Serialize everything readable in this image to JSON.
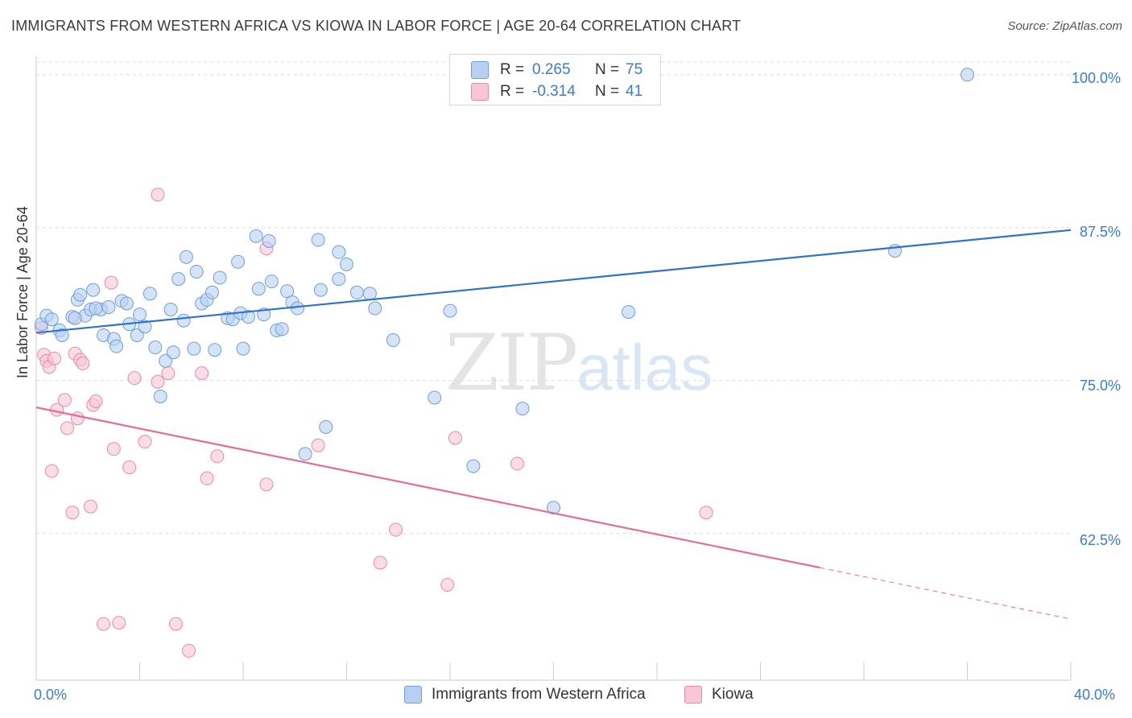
{
  "title": "IMMIGRANTS FROM WESTERN AFRICA VS KIOWA IN LABOR FORCE | AGE 20-64 CORRELATION CHART",
  "source": "Source: ZipAtlas.com",
  "watermark": {
    "main": "ZIP",
    "sub": "atlas"
  },
  "legend": {
    "rows": [
      {
        "r_label": "R =",
        "r_value": "0.265",
        "n_label": "N =",
        "n_value": "75"
      },
      {
        "r_label": "R =",
        "r_value": "-0.314",
        "n_label": "N =",
        "n_value": "41"
      }
    ]
  },
  "colors": {
    "series1_fill": "#b7d0f2",
    "series1_stroke": "#6f9fd8",
    "series1_line": "#2f74c8",
    "series2_fill": "#f8c6d6",
    "series2_stroke": "#e98aa9",
    "series2_line": "#e56b98",
    "tick_text": "#3a7bd5",
    "grid": "#dcdcdc"
  },
  "chart_data": {
    "type": "scatter",
    "title": "IMMIGRANTS FROM WESTERN AFRICA VS KIOWA IN LABOR FORCE | AGE 20-64 CORRELATION CHART",
    "xlabel": "",
    "ylabel": "In Labor Force | Age 20-64",
    "xlim": [
      0,
      40
    ],
    "ylim": [
      50.5,
      101.5
    ],
    "x_tick_labels": [
      "0.0%",
      "40.0%"
    ],
    "y_ticks": [
      62.5,
      75.0,
      87.5,
      100.0
    ],
    "y_tick_labels": [
      "62.5%",
      "75.0%",
      "87.5%",
      "100.0%"
    ],
    "grid": true,
    "legend_position": "top-center",
    "series": [
      {
        "name": "Immigrants from Western Africa",
        "trend": {
          "x": [
            0,
            40
          ],
          "y": [
            78.9,
            87.3
          ]
        },
        "points": [
          [
            0.2,
            79.6
          ],
          [
            0.4,
            80.3
          ],
          [
            0.6,
            80.0
          ],
          [
            0.9,
            79.1
          ],
          [
            1.0,
            78.7
          ],
          [
            1.4,
            80.2
          ],
          [
            1.6,
            81.6
          ],
          [
            1.7,
            82.0
          ],
          [
            1.9,
            80.3
          ],
          [
            2.1,
            80.8
          ],
          [
            2.2,
            82.4
          ],
          [
            2.5,
            80.8
          ],
          [
            2.6,
            78.7
          ],
          [
            2.8,
            81.0
          ],
          [
            3.0,
            78.4
          ],
          [
            3.1,
            77.8
          ],
          [
            3.3,
            81.5
          ],
          [
            3.5,
            81.3
          ],
          [
            3.6,
            79.6
          ],
          [
            3.9,
            78.7
          ],
          [
            4.0,
            80.4
          ],
          [
            4.2,
            79.4
          ],
          [
            4.4,
            82.1
          ],
          [
            4.6,
            77.7
          ],
          [
            4.8,
            73.7
          ],
          [
            5.0,
            76.6
          ],
          [
            5.2,
            80.8
          ],
          [
            5.3,
            77.3
          ],
          [
            5.5,
            83.3
          ],
          [
            5.7,
            79.9
          ],
          [
            5.8,
            85.1
          ],
          [
            6.1,
            77.6
          ],
          [
            6.2,
            83.9
          ],
          [
            6.4,
            81.3
          ],
          [
            6.6,
            81.6
          ],
          [
            6.8,
            82.2
          ],
          [
            6.9,
            77.5
          ],
          [
            7.1,
            83.4
          ],
          [
            7.4,
            80.1
          ],
          [
            7.6,
            80.0
          ],
          [
            7.8,
            84.7
          ],
          [
            7.9,
            80.5
          ],
          [
            8.0,
            77.6
          ],
          [
            8.2,
            80.2
          ],
          [
            8.5,
            86.8
          ],
          [
            8.6,
            82.5
          ],
          [
            8.8,
            80.4
          ],
          [
            9.0,
            86.4
          ],
          [
            9.1,
            83.1
          ],
          [
            9.3,
            79.1
          ],
          [
            9.5,
            79.2
          ],
          [
            9.7,
            82.3
          ],
          [
            9.9,
            81.4
          ],
          [
            10.1,
            80.9
          ],
          [
            10.4,
            69.0
          ],
          [
            10.9,
            86.5
          ],
          [
            11.0,
            82.4
          ],
          [
            11.2,
            71.2
          ],
          [
            11.7,
            83.3
          ],
          [
            11.7,
            85.5
          ],
          [
            12.0,
            84.5
          ],
          [
            12.4,
            82.2
          ],
          [
            12.9,
            82.1
          ],
          [
            13.1,
            80.9
          ],
          [
            13.8,
            78.3
          ],
          [
            15.4,
            73.6
          ],
          [
            16.0,
            80.7
          ],
          [
            16.9,
            68.0
          ],
          [
            18.8,
            72.7
          ],
          [
            20.0,
            64.6
          ],
          [
            22.9,
            80.6
          ],
          [
            33.2,
            85.6
          ],
          [
            36.0,
            100.0
          ],
          [
            1.5,
            80.1
          ],
          [
            2.3,
            80.9
          ]
        ]
      },
      {
        "name": "Kiowa",
        "trend": {
          "x": [
            0,
            30.3
          ],
          "y": [
            72.8,
            59.7
          ]
        },
        "trend_dashed": {
          "x": [
            30.3,
            40
          ],
          "y": [
            59.7,
            55.5
          ]
        },
        "points": [
          [
            0.2,
            79.3
          ],
          [
            0.3,
            77.1
          ],
          [
            0.4,
            76.6
          ],
          [
            0.5,
            76.1
          ],
          [
            0.6,
            67.6
          ],
          [
            0.7,
            76.8
          ],
          [
            0.8,
            72.6
          ],
          [
            1.1,
            73.4
          ],
          [
            1.2,
            71.1
          ],
          [
            1.4,
            64.2
          ],
          [
            1.5,
            77.2
          ],
          [
            1.6,
            71.9
          ],
          [
            1.7,
            76.7
          ],
          [
            1.8,
            76.4
          ],
          [
            2.1,
            64.7
          ],
          [
            2.2,
            73.0
          ],
          [
            2.3,
            73.3
          ],
          [
            2.6,
            55.1
          ],
          [
            2.9,
            83.0
          ],
          [
            3.0,
            69.4
          ],
          [
            3.2,
            55.2
          ],
          [
            3.6,
            67.9
          ],
          [
            3.8,
            75.2
          ],
          [
            4.2,
            70.0
          ],
          [
            4.7,
            74.9
          ],
          [
            4.7,
            90.2
          ],
          [
            5.1,
            75.6
          ],
          [
            5.4,
            55.1
          ],
          [
            5.9,
            52.9
          ],
          [
            6.4,
            75.6
          ],
          [
            6.6,
            67.0
          ],
          [
            7.0,
            68.8
          ],
          [
            8.9,
            66.5
          ],
          [
            8.9,
            85.8
          ],
          [
            10.9,
            69.7
          ],
          [
            13.3,
            60.1
          ],
          [
            13.9,
            62.8
          ],
          [
            15.9,
            58.3
          ],
          [
            16.2,
            70.3
          ],
          [
            18.6,
            68.2
          ],
          [
            25.9,
            64.2
          ]
        ]
      }
    ]
  }
}
